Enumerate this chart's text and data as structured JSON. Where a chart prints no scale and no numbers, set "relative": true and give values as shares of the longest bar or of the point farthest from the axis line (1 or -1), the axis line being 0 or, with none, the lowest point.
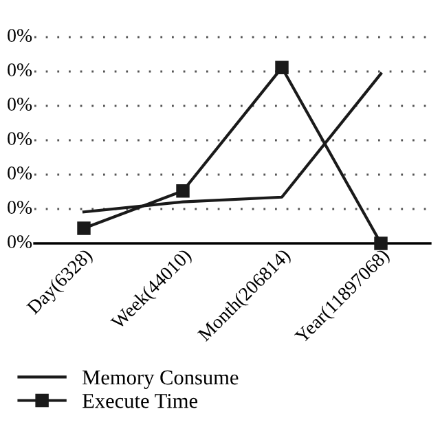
{
  "chart_data": {
    "type": "line",
    "categories": [
      "Day(6328)",
      "Week(44010)",
      "Month(206814)",
      "Year(11897068)"
    ],
    "series": [
      {
        "name": "Memory Consume",
        "color": "#1a1a1a",
        "marker": "none",
        "values": [
          0.179,
          0.236,
          0.263,
          0.965
        ]
      },
      {
        "name": "Execute Time",
        "color": "#1a1a1a",
        "marker": "square",
        "values": [
          0.086,
          0.298,
          1,
          0
        ]
      }
    ],
    "relative": true,
    "annotations": [
      "0%",
      "0%",
      "0%",
      "0%",
      "0%",
      "0%",
      "0%"
    ],
    "grid": "y",
    "legend": "bottom left",
    "line_style": "solid"
  }
}
